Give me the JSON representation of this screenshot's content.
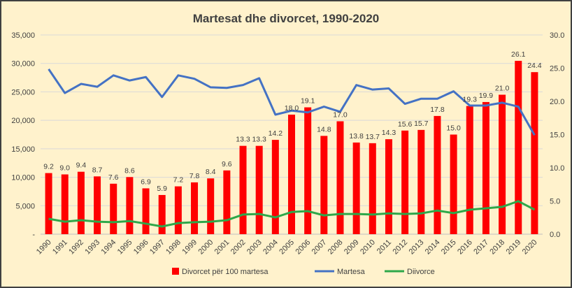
{
  "chart_data": {
    "type": "bar",
    "title": "Martesat dhe divorcet, 1990-2020",
    "categories": [
      "1990",
      "1991",
      "1992",
      "1993",
      "1994",
      "1995",
      "1996",
      "1997",
      "1998",
      "1999",
      "2000",
      "2001",
      "2002",
      "2003",
      "2004",
      "2005",
      "2006",
      "2007",
      "2008",
      "2009",
      "2010",
      "2011",
      "2012",
      "2013",
      "2014",
      "2015",
      "2016",
      "2017",
      "2018",
      "2019",
      "2020"
    ],
    "series": [
      {
        "name": "Divorcet për 100 martesa",
        "type": "bar",
        "axis": "right",
        "color": "#ff0000",
        "values": [
          9.2,
          9.0,
          9.4,
          8.7,
          7.6,
          8.6,
          6.9,
          5.9,
          7.2,
          7.8,
          8.4,
          9.6,
          13.3,
          13.3,
          14.2,
          18.0,
          19.1,
          14.8,
          17.0,
          13.8,
          13.7,
          14.3,
          15.6,
          15.7,
          17.8,
          15.0,
          19.3,
          19.9,
          21.0,
          26.1,
          24.4
        ]
      },
      {
        "name": "Martesa",
        "type": "line",
        "axis": "left",
        "color": "#4472c4",
        "values": [
          29000,
          24800,
          26400,
          25900,
          27900,
          27000,
          27600,
          24100,
          27900,
          27300,
          25800,
          25700,
          26200,
          27400,
          21000,
          21700,
          21400,
          22400,
          21500,
          26200,
          25400,
          25600,
          22900,
          23800,
          23800,
          25100,
          22600,
          22600,
          23100,
          22400,
          17400
        ]
      },
      {
        "name": "Diivorce",
        "type": "line",
        "axis": "left",
        "color": "#2ea84a",
        "values": [
          2700,
          2200,
          2450,
          2200,
          2100,
          2300,
          1850,
          1350,
          1950,
          2100,
          2200,
          2450,
          3450,
          3550,
          2950,
          3900,
          4050,
          3300,
          3550,
          3550,
          3450,
          3650,
          3550,
          3650,
          4150,
          3700,
          4300,
          4550,
          4800,
          5800,
          4300
        ]
      }
    ],
    "left_axis": {
      "ylim": [
        0,
        35000
      ],
      "ticks": [
        "-",
        "5,000",
        "10,000",
        "15,000",
        "20,000",
        "25,000",
        "30,000",
        "35,000"
      ]
    },
    "right_axis": {
      "ylim": [
        0,
        30
      ],
      "ticks": [
        "0.0",
        "5.0",
        "10.0",
        "15.0",
        "20.0",
        "25.0",
        "30.0"
      ]
    },
    "grid": true,
    "legend": "bottom"
  }
}
